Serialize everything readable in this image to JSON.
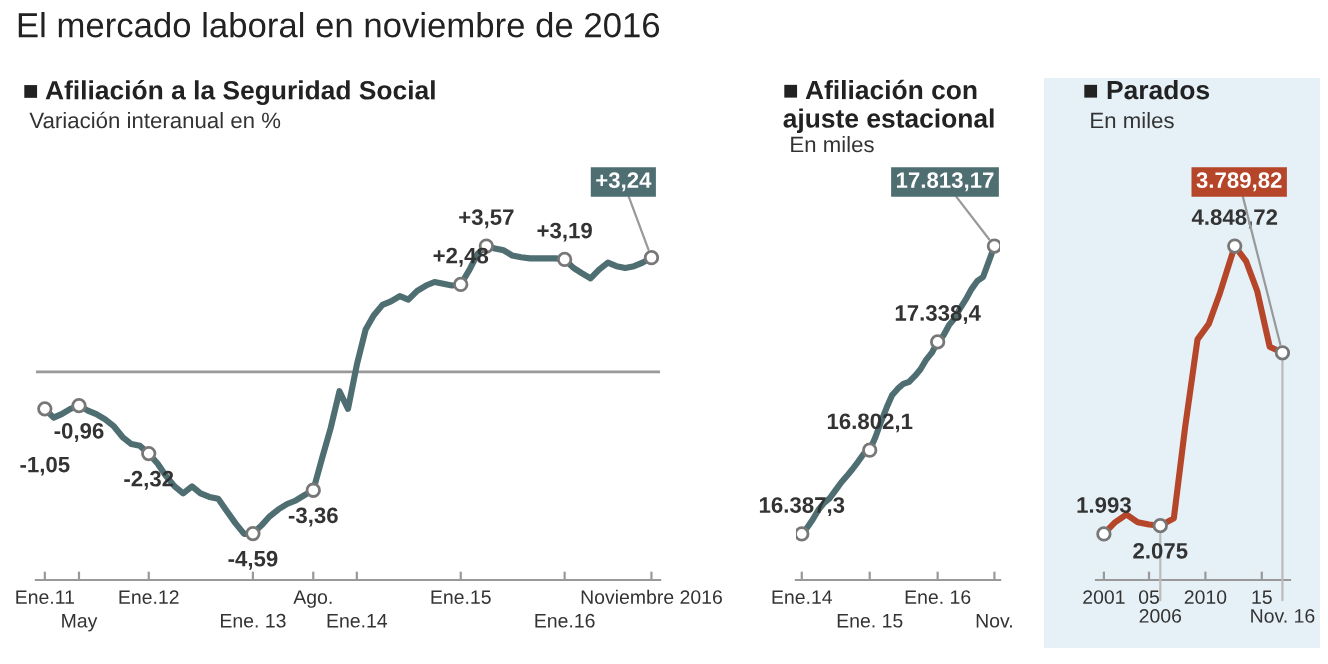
{
  "chart_data": [
    {
      "type": "line",
      "title": "■ Afiliación a la Seguridad Social",
      "subtitle": "Variación interanual en %",
      "annotations": [
        "El mercado laboral en noviembre de 2016"
      ],
      "x": [
        "2011-01",
        "2011-02",
        "2011-03",
        "2011-04",
        "2011-05",
        "2011-06",
        "2011-07",
        "2011-08",
        "2011-09",
        "2011-10",
        "2011-11",
        "2011-12",
        "2012-01",
        "2012-02",
        "2012-03",
        "2012-04",
        "2012-05",
        "2012-06",
        "2012-07",
        "2012-08",
        "2012-09",
        "2012-10",
        "2012-11",
        "2012-12",
        "2013-01",
        "2013-02",
        "2013-03",
        "2013-04",
        "2013-05",
        "2013-06",
        "2013-07",
        "2013-08",
        "2013-09",
        "2013-10",
        "2013-11",
        "2013-12",
        "2014-01",
        "2014-02",
        "2014-03",
        "2014-04",
        "2014-05",
        "2014-06",
        "2014-07",
        "2014-08",
        "2014-09",
        "2014-10",
        "2014-11",
        "2014-12",
        "2015-01",
        "2015-02",
        "2015-03",
        "2015-04",
        "2015-05",
        "2015-06",
        "2015-07",
        "2015-08",
        "2015-09",
        "2015-10",
        "2015-11",
        "2015-12",
        "2016-01",
        "2016-02",
        "2016-03",
        "2016-04",
        "2016-05",
        "2016-06",
        "2016-07",
        "2016-08",
        "2016-09",
        "2016-10",
        "2016-11"
      ],
      "values": [
        -1.05,
        -1.3,
        -1.2,
        -1.05,
        -0.96,
        -1.1,
        -1.2,
        -1.35,
        -1.55,
        -1.85,
        -2.05,
        -2.1,
        -2.32,
        -2.6,
        -2.95,
        -3.25,
        -3.45,
        -3.25,
        -3.45,
        -3.55,
        -3.6,
        -3.95,
        -4.3,
        -4.6,
        -4.59,
        -4.35,
        -4.1,
        -3.9,
        -3.75,
        -3.65,
        -3.5,
        -3.36,
        -2.45,
        -1.6,
        -0.55,
        -1.05,
        0.2,
        1.2,
        1.6,
        1.9,
        2.0,
        2.15,
        2.05,
        2.3,
        2.45,
        2.55,
        2.5,
        2.45,
        2.48,
        2.9,
        3.35,
        3.57,
        3.5,
        3.45,
        3.3,
        3.25,
        3.22,
        3.22,
        3.22,
        3.22,
        3.19,
        2.95,
        2.8,
        2.65,
        2.9,
        3.1,
        3.0,
        2.95,
        3.0,
        3.1,
        3.24
      ],
      "value_labels": [
        "-1,05",
        null,
        null,
        null,
        "-0,96",
        null,
        null,
        null,
        null,
        null,
        null,
        null,
        "-2,32",
        null,
        null,
        null,
        null,
        null,
        null,
        null,
        null,
        null,
        null,
        null,
        "-4,59",
        null,
        null,
        null,
        null,
        null,
        null,
        "-3,36",
        null,
        null,
        null,
        null,
        null,
        null,
        null,
        null,
        null,
        null,
        null,
        null,
        null,
        null,
        null,
        null,
        "+2,48",
        null,
        null,
        "+3,57",
        null,
        null,
        null,
        null,
        null,
        null,
        null,
        null,
        "+3,19",
        null,
        null,
        null,
        null,
        null,
        null,
        null,
        null,
        null,
        "+3,24"
      ],
      "color": "#4f6e72",
      "xlim": [
        "2010-12",
        "2016-12"
      ],
      "xticks": [
        {
          "value": "2011-01",
          "label": "Ene.11"
        },
        {
          "value": "2012-01",
          "label": "Ene.12"
        },
        {
          "value": "2013-08",
          "label": "Ago."
        },
        {
          "value": "2015-01",
          "label": "Ene.15"
        },
        {
          "value": "2016-11",
          "label": "Noviembre 2016"
        }
      ],
      "x2lim": [
        "2010-12",
        "2016-12"
      ],
      "x2ticks": [
        {
          "value": "2011-05",
          "label": "May"
        },
        {
          "value": "2013-01",
          "label": "Ene. 13"
        },
        {
          "value": "2014-01",
          "label": "Ene.14"
        },
        {
          "value": "2016-01",
          "label": "Ene.16"
        }
      ],
      "ref_lines": [
        {
          "axis": "y",
          "value": 0,
          "color": "#999999"
        }
      ],
      "tick_labels": "x"
    },
    {
      "type": "line",
      "title": "■ Afiliación con\najuste estacional",
      "subtitle": "En miles",
      "x": [
        "2014-01",
        "2014-02",
        "2014-03",
        "2014-04",
        "2014-05",
        "2014-06",
        "2014-07",
        "2014-08",
        "2014-09",
        "2014-10",
        "2014-11",
        "2014-12",
        "2015-01",
        "2015-02",
        "2015-03",
        "2015-04",
        "2015-05",
        "2015-06",
        "2015-07",
        "2015-08",
        "2015-09",
        "2015-10",
        "2015-11",
        "2015-12",
        "2016-01",
        "2016-02",
        "2016-03",
        "2016-04",
        "2016-05",
        "2016-06",
        "2016-07",
        "2016-08",
        "2016-09",
        "2016-10",
        "2016-11"
      ],
      "values": [
        16387.3,
        16421,
        16459,
        16507,
        16541,
        16565,
        16603,
        16642,
        16675,
        16709,
        16747,
        16786,
        16802.1,
        16867,
        16939,
        17011,
        17074,
        17107,
        17131,
        17141,
        17170,
        17203,
        17251,
        17285,
        17338.4,
        17370,
        17420,
        17455,
        17505,
        17550,
        17600,
        17640,
        17660,
        17735,
        17813.17
      ],
      "value_labels": [
        "16.387,3",
        null,
        null,
        null,
        null,
        null,
        null,
        null,
        null,
        null,
        null,
        null,
        "16.802,1",
        null,
        null,
        null,
        null,
        null,
        null,
        null,
        null,
        null,
        null,
        null,
        "17.338,4",
        null,
        null,
        null,
        null,
        null,
        null,
        null,
        null,
        null,
        "17.813,17"
      ],
      "color": "#4f6e72",
      "xlim": [
        "2013-12",
        "2016-12"
      ],
      "xticks": [
        {
          "value": "2014-01",
          "label": "Ene.14"
        },
        {
          "value": "2016-01",
          "label": "Ene. 16"
        }
      ],
      "x2lim": [
        "2013-12",
        "2016-12"
      ],
      "x2ticks": [
        {
          "value": "2015-01",
          "label": "Ene. 15"
        },
        {
          "value": "2016-11",
          "label": "Nov."
        }
      ],
      "tick_labels": "x"
    },
    {
      "type": "line",
      "title": "■ Parados",
      "subtitle": "En miles",
      "x": [
        2001,
        2002,
        2003,
        2004,
        2005,
        2006,
        2007.2,
        2008.2,
        2009.3,
        2010.3,
        2011.3,
        2012.6,
        2013.6,
        2014.6,
        2015.7,
        2016.83
      ],
      "values": [
        1993,
        2109,
        2186,
        2109,
        2086,
        2075,
        2147,
        3050,
        3923,
        4077,
        4386,
        4848.72,
        4700,
        4400,
        3850,
        3789.82
      ],
      "value_labels": [
        "1.993",
        null,
        null,
        null,
        null,
        "2.075",
        null,
        null,
        null,
        null,
        null,
        "4.848,72",
        null,
        null,
        null,
        "3.789,82"
      ],
      "color": "#b5462a",
      "xlim": [
        2000.3,
        2017.5
      ],
      "xticks": [
        2001,
        {
          "value": 2005,
          "label": "05"
        },
        2010,
        {
          "value": 2015,
          "label": "15"
        }
      ],
      "annotations": [
        {
          "text": "2006",
          "x": 2006,
          "y": 2075
        },
        {
          "text": "Nov. 16",
          "x": 2016.83,
          "y": 3789.82
        }
      ],
      "tick_labels": "x"
    }
  ]
}
